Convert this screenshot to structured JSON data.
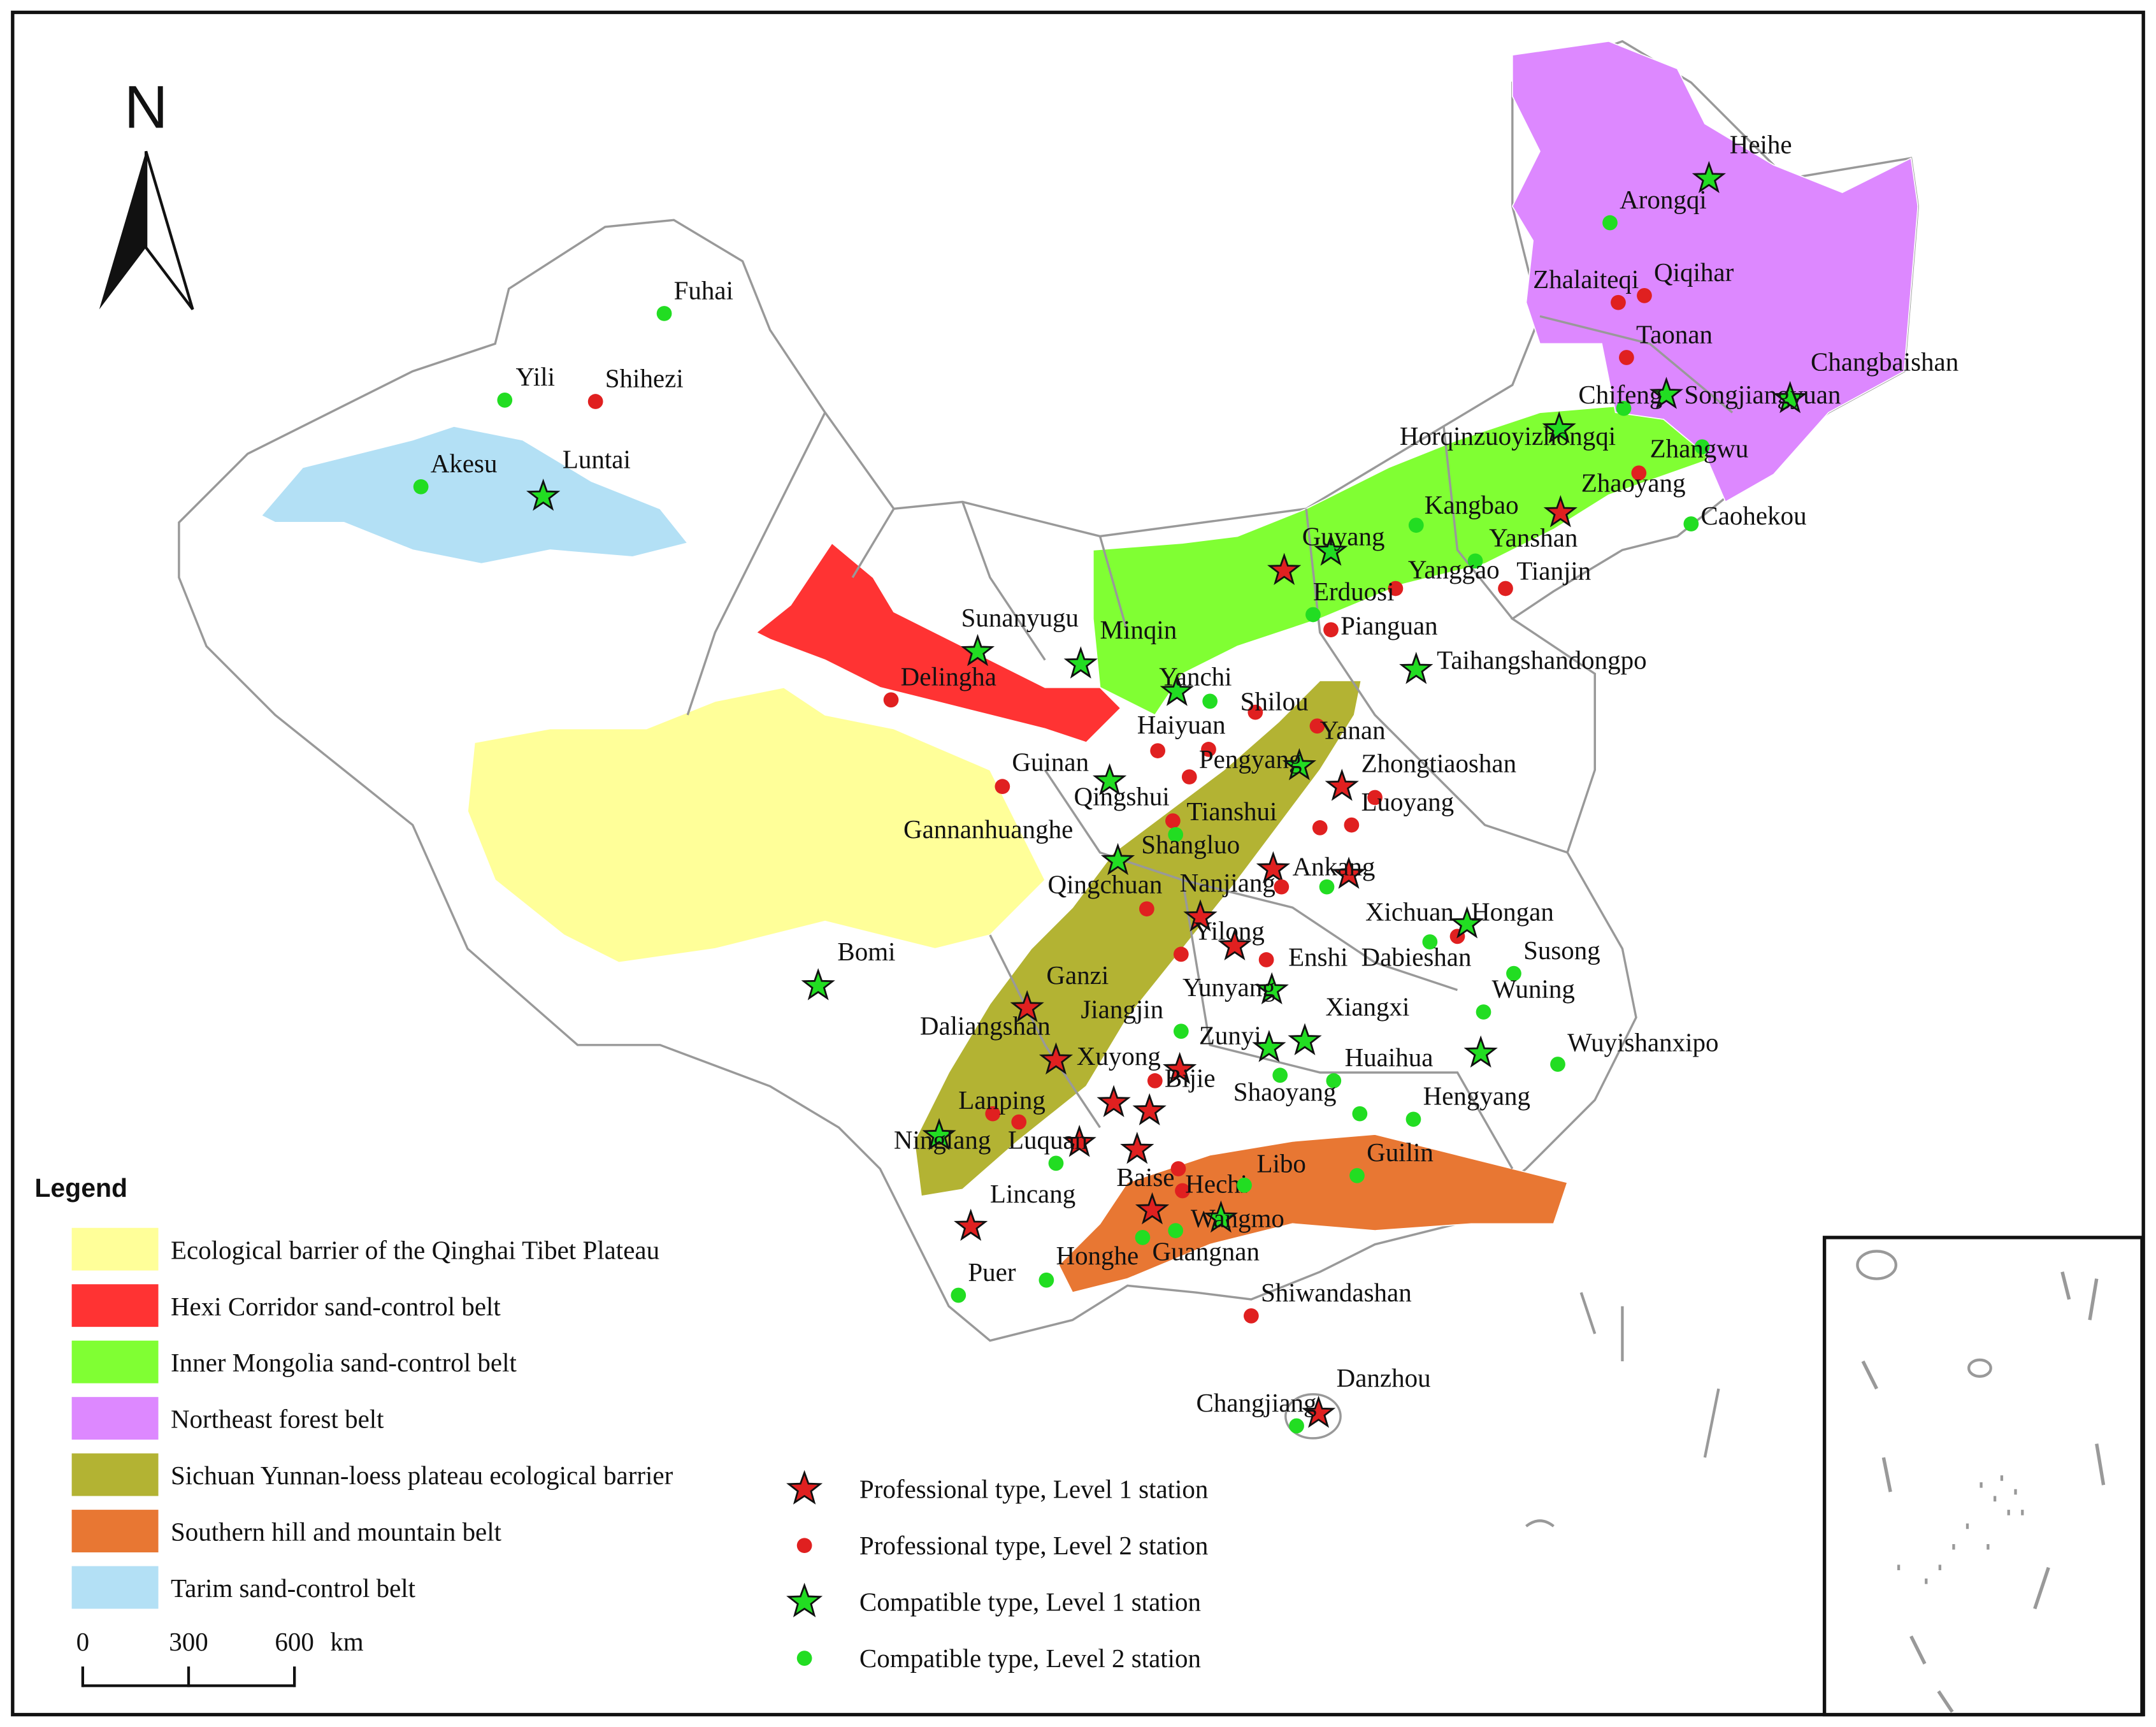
{
  "north": "N",
  "legend": {
    "title": "Legend",
    "belts": [
      {
        "label": "Ecological barrier of the Qinghai Tibet Plateau",
        "color": "#ffff99"
      },
      {
        "label": "Hexi Corridor sand-control belt",
        "color": "#ff3333"
      },
      {
        "label": "Inner Mongolia sand-control belt",
        "color": "#80ff33"
      },
      {
        "label": "Northeast forest belt",
        "color": "#dd88ff"
      },
      {
        "label": "Sichuan Yunnan-loess plateau ecological barrier",
        "color": "#b3b333"
      },
      {
        "label": "Southern hill and mountain belt",
        "color": "#e87733"
      },
      {
        "label": "Tarim sand-control belt",
        "color": "#b3e0f5"
      }
    ],
    "station_types": [
      {
        "label": "Professional type, Level 1 station",
        "color": "#e02020",
        "shape": "star",
        "stations": [
          null,
          "Yanshan",
          "Zhongtiaoshan",
          "Nanjiang",
          "Ankang",
          "Yilong",
          null,
          "Ganzi",
          "Daliangshan",
          "Xuyong",
          null,
          null,
          null,
          null,
          null,
          null,
          "Danzhou"
        ]
      },
      {
        "label": "Professional type, Level 2 station",
        "color": "#e02020",
        "shape": "circle",
        "stations": [
          "Zhalaiteqi",
          "Qiqihar",
          "Taonan",
          "Zhaoyang",
          "Tianjin",
          "Erduosi",
          "Pianguan",
          "Delingha",
          "Shilou",
          "Yanan",
          "Haiyuan",
          null,
          "Luoyang",
          "Guinan",
          null,
          "Tianshui",
          null,
          null,
          "Qingchuan",
          null,
          "Xichuan",
          null,
          "Enshi",
          "Bijie",
          "Lanping",
          "Luquan",
          "Baise",
          "Hechi",
          "Shiwandashan",
          "Shihezi"
        ]
      },
      {
        "label": "Compatible type, Level 1 station",
        "color": "#22dd22",
        "shape": "star",
        "stations": [
          "Heihe",
          "Changbaishan",
          "Songjiangyuan",
          "Horqinzuoyizhongqi",
          "Guyang",
          "Taihangshandongpo",
          "Sunanyugu",
          "Minqin",
          "Yanchi",
          "Pengyang",
          "Qingshui",
          "Gannanhuanghe",
          "Hongan",
          "Yunyang",
          "Xiangxi",
          "Zunyi",
          "Hengyang",
          "Ninglang",
          "Wangmo",
          "Luntai",
          "Bomi"
        ]
      },
      {
        "label": "Compatible type, Level 2 station",
        "color": "#22dd22",
        "shape": "circle",
        "stations": [
          "Arongqi",
          "Chifeng",
          "Zhangwu",
          "Caohekou",
          "Kangbao",
          "Yanggao",
          null,
          null,
          "Shangluo",
          null,
          "Dabieshan",
          "Susong",
          "Wuning",
          "Jiangjin",
          "Huaihua",
          "Wuyishanxipo",
          "Shaoyang",
          null,
          null,
          "Guilin",
          "Libo",
          "Lincang",
          "Honghe",
          "Guangnan",
          "Puer",
          null,
          "Changjiang",
          "Fuhai",
          "Yili",
          "Akesu"
        ]
      }
    ]
  },
  "scale_bar": {
    "ticks": [
      0,
      300,
      600
    ],
    "unit": "km"
  }
}
